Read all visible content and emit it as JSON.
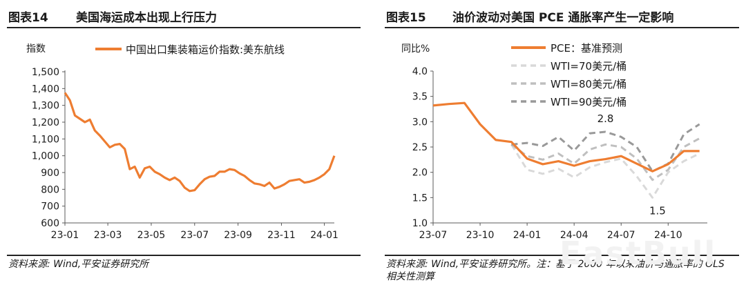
{
  "left": {
    "title_num": "图表14",
    "title_text": "美国海运成本出现上行压力",
    "source": "资料来源: Wind,平安证券研究所"
  },
  "right": {
    "title_num": "图表15",
    "title_text": "油价波动对美国 PCE 通胀率产生一定影响",
    "source": "资料来源: Wind,平安证券研究所。注：基于 2000 年以来油价与通胀率的 OLS 相关性测算"
  },
  "watermark": "EastBull",
  "chart_data": [
    {
      "type": "line",
      "ylabel": "指数",
      "ylim": [
        600,
        1500
      ],
      "yticks": [
        "600",
        "700",
        "800",
        "900",
        "1,000",
        "1,100",
        "1,200",
        "1,300",
        "1,400",
        "1,500"
      ],
      "ytick_values": [
        600,
        700,
        800,
        900,
        1000,
        1100,
        1200,
        1300,
        1400,
        1500
      ],
      "xticks": [
        "23-01",
        "23-03",
        "23-05",
        "23-07",
        "23-09",
        "23-11",
        "24-01"
      ],
      "xtick_weeks": [
        0,
        8.6,
        17.3,
        26,
        34.7,
        43.4,
        52
      ],
      "legend_position": "top",
      "grid": false,
      "series": [
        {
          "name": "中国出口集装箱运价指数:美东航线",
          "color": "#ee7d31",
          "x": [
            0,
            1,
            2,
            3,
            4,
            5,
            6,
            7,
            8,
            9,
            10,
            11,
            12,
            13,
            14,
            15,
            16,
            17,
            18,
            19,
            20,
            21,
            22,
            23,
            24,
            25,
            26,
            27,
            28,
            29,
            30,
            31,
            32,
            33,
            34,
            35,
            36,
            37,
            38,
            39,
            40,
            41,
            42,
            43,
            44,
            45,
            46,
            47,
            48,
            49,
            50,
            51,
            52,
            53,
            54
          ],
          "values": [
            1375,
            1330,
            1240,
            1220,
            1200,
            1215,
            1150,
            1120,
            1085,
            1050,
            1065,
            1070,
            1040,
            920,
            935,
            870,
            925,
            935,
            905,
            890,
            870,
            855,
            870,
            850,
            810,
            790,
            795,
            830,
            860,
            875,
            880,
            905,
            905,
            920,
            915,
            895,
            880,
            855,
            835,
            830,
            820,
            840,
            805,
            815,
            830,
            850,
            855,
            860,
            840,
            845,
            855,
            870,
            890,
            920,
            1000
          ]
        }
      ]
    },
    {
      "type": "line",
      "ylabel": "同比%",
      "ylim": [
        1.0,
        4.0
      ],
      "yticks": [
        "1.0",
        "1.5",
        "2.0",
        "2.5",
        "3.0",
        "3.5",
        "4.0"
      ],
      "ytick_values": [
        1.0,
        1.5,
        2.0,
        2.5,
        3.0,
        3.5,
        4.0
      ],
      "xticks": [
        "23-07",
        "23-10",
        "24-01",
        "24-04",
        "24-07",
        "24-10"
      ],
      "xtick_months": [
        0,
        3,
        6,
        9,
        12,
        15
      ],
      "legend_position": "top",
      "grid": false,
      "annotations": [
        {
          "text": "2.8",
          "x": 11,
          "y": 2.8
        },
        {
          "text": "1.5",
          "x": 14.5,
          "y": 1.5
        }
      ],
      "series": [
        {
          "name": "PCE：基准预测",
          "color": "#ee7d31",
          "style": "solid",
          "x": [
            0,
            1,
            2,
            3,
            4,
            5,
            6,
            7,
            8,
            9,
            10,
            11,
            12,
            13,
            14,
            15,
            16,
            17
          ],
          "values": [
            3.32,
            3.35,
            3.37,
            2.95,
            2.64,
            2.6,
            2.27,
            2.16,
            2.22,
            2.13,
            2.22,
            2.26,
            2.32,
            2.17,
            2.02,
            2.16,
            2.42,
            2.42
          ]
        },
        {
          "name": "WTI=70美元/桶",
          "color": "#d9d9d9",
          "style": "dashed",
          "x": [
            5,
            6,
            7,
            8,
            9,
            10,
            11,
            12,
            13,
            14,
            15,
            16,
            17
          ],
          "values": [
            2.55,
            2.05,
            1.97,
            2.07,
            1.9,
            2.1,
            2.2,
            2.27,
            1.92,
            1.5,
            2.0,
            2.22,
            2.37
          ]
        },
        {
          "name": "WTI=80美元/桶",
          "color": "#bfbfbf",
          "style": "dashed",
          "x": [
            5,
            6,
            7,
            8,
            9,
            10,
            11,
            12,
            13,
            14,
            15,
            16,
            17
          ],
          "values": [
            2.55,
            2.32,
            2.25,
            2.37,
            2.17,
            2.45,
            2.55,
            2.5,
            2.27,
            1.85,
            2.05,
            2.5,
            2.67
          ]
        },
        {
          "name": "WTI=90美元/桶",
          "color": "#999999",
          "style": "dashed",
          "x": [
            5,
            6,
            7,
            8,
            9,
            10,
            11,
            12,
            13,
            14,
            15,
            16,
            17
          ],
          "values": [
            2.55,
            2.58,
            2.52,
            2.7,
            2.43,
            2.77,
            2.8,
            2.7,
            2.5,
            2.02,
            2.17,
            2.75,
            2.95
          ]
        }
      ]
    }
  ]
}
